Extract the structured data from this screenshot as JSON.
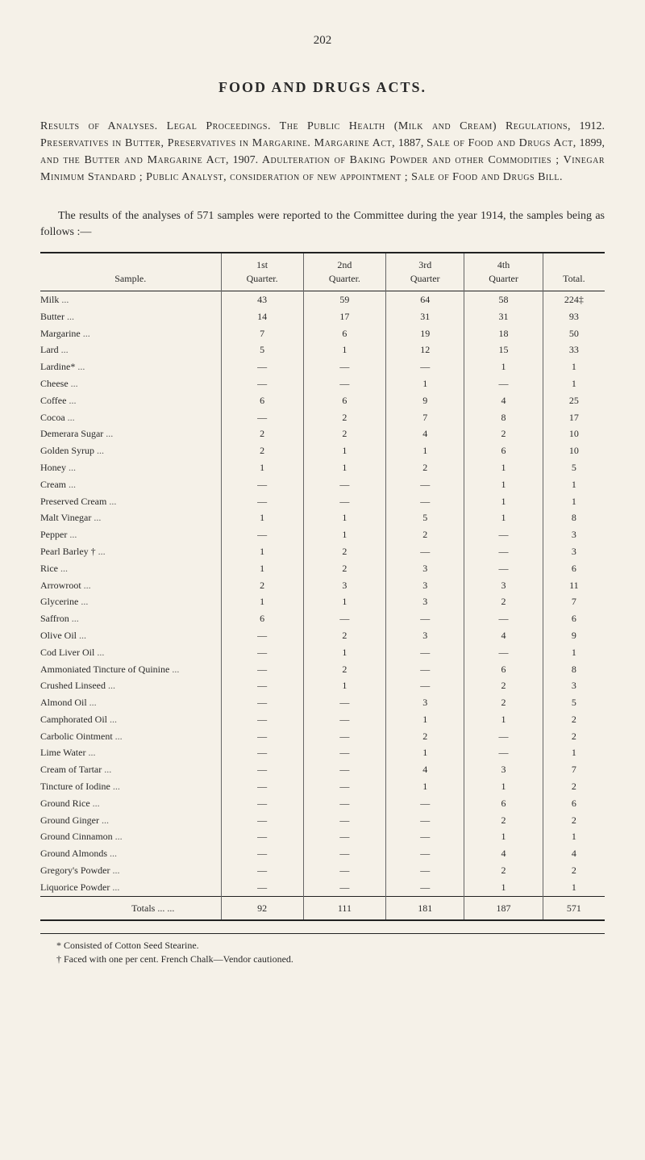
{
  "page_number": "202",
  "title": "FOOD AND DRUGS ACTS.",
  "intro": "Results of Analyses. Legal Proceedings. The Public Health (Milk and Cream) Regulations, 1912. Preservatives in Butter, Preservatives in Margarine. Margarine Act, 1887, Sale of Food and Drugs Act, 1899, and the Butter and Margarine Act, 1907. Adulteration of Baking Powder and other Commodities ; Vinegar Minimum Standard ; Public Analyst, consideration of new appointment ; Sale of Food and Drugs Bill.",
  "results_para": "The results of the analyses of 571 samples were reported to the Committee during the year 1914, the samples being as follows :—",
  "headers": {
    "sample": "Sample.",
    "q1": "1st\nQuarter.",
    "q2": "2nd\nQuarter.",
    "q3": "3rd\nQuarter",
    "q4": "4th\nQuarter",
    "total": "Total."
  },
  "rows": [
    {
      "label": "Milk",
      "q1": "43",
      "q2": "59",
      "q3": "64",
      "q4": "58",
      "total": "224‡"
    },
    {
      "label": "Butter",
      "q1": "14",
      "q2": "17",
      "q3": "31",
      "q4": "31",
      "total": "93"
    },
    {
      "label": "Margarine",
      "q1": "7",
      "q2": "6",
      "q3": "19",
      "q4": "18",
      "total": "50"
    },
    {
      "label": "Lard",
      "q1": "5",
      "q2": "1",
      "q3": "12",
      "q4": "15",
      "total": "33"
    },
    {
      "label": "Lardine*",
      "q1": "—",
      "q2": "—",
      "q3": "—",
      "q4": "1",
      "total": "1"
    },
    {
      "label": "Cheese",
      "q1": "—",
      "q2": "—",
      "q3": "1",
      "q4": "—",
      "total": "1"
    },
    {
      "label": "Coffee",
      "q1": "6",
      "q2": "6",
      "q3": "9",
      "q4": "4",
      "total": "25"
    },
    {
      "label": "Cocoa",
      "q1": "—",
      "q2": "2",
      "q3": "7",
      "q4": "8",
      "total": "17"
    },
    {
      "label": "Demerara Sugar",
      "q1": "2",
      "q2": "2",
      "q3": "4",
      "q4": "2",
      "total": "10"
    },
    {
      "label": "Golden Syrup",
      "q1": "2",
      "q2": "1",
      "q3": "1",
      "q4": "6",
      "total": "10"
    },
    {
      "label": "Honey",
      "q1": "1",
      "q2": "1",
      "q3": "2",
      "q4": "1",
      "total": "5"
    },
    {
      "label": "Cream",
      "q1": "—",
      "q2": "—",
      "q3": "—",
      "q4": "1",
      "total": "1"
    },
    {
      "label": "Preserved Cream",
      "q1": "—",
      "q2": "—",
      "q3": "—",
      "q4": "1",
      "total": "1"
    },
    {
      "label": "Malt Vinegar",
      "q1": "1",
      "q2": "1",
      "q3": "5",
      "q4": "1",
      "total": "8"
    },
    {
      "label": "Pepper",
      "q1": "—",
      "q2": "1",
      "q3": "2",
      "q4": "—",
      "total": "3"
    },
    {
      "label": "Pearl Barley †",
      "q1": "1",
      "q2": "2",
      "q3": "—",
      "q4": "—",
      "total": "3"
    },
    {
      "label": "Rice",
      "q1": "1",
      "q2": "2",
      "q3": "3",
      "q4": "—",
      "total": "6"
    },
    {
      "label": "Arrowroot",
      "q1": "2",
      "q2": "3",
      "q3": "3",
      "q4": "3",
      "total": "11"
    },
    {
      "label": "Glycerine",
      "q1": "1",
      "q2": "1",
      "q3": "3",
      "q4": "2",
      "total": "7"
    },
    {
      "label": "Saffron",
      "q1": "6",
      "q2": "—",
      "q3": "—",
      "q4": "—",
      "total": "6"
    },
    {
      "label": "Olive Oil",
      "q1": "—",
      "q2": "2",
      "q3": "3",
      "q4": "4",
      "total": "9"
    },
    {
      "label": "Cod Liver Oil",
      "q1": "—",
      "q2": "1",
      "q3": "—",
      "q4": "—",
      "total": "1"
    },
    {
      "label": "Ammoniated Tincture of Quinine",
      "q1": "—",
      "q2": "2",
      "q3": "—",
      "q4": "6",
      "total": "8"
    },
    {
      "label": "Crushed Linseed",
      "q1": "—",
      "q2": "1",
      "q3": "—",
      "q4": "2",
      "total": "3"
    },
    {
      "label": "Almond Oil",
      "q1": "—",
      "q2": "—",
      "q3": "3",
      "q4": "2",
      "total": "5"
    },
    {
      "label": "Camphorated Oil",
      "q1": "—",
      "q2": "—",
      "q3": "1",
      "q4": "1",
      "total": "2"
    },
    {
      "label": "Carbolic Ointment",
      "q1": "—",
      "q2": "—",
      "q3": "2",
      "q4": "—",
      "total": "2"
    },
    {
      "label": "Lime Water",
      "q1": "—",
      "q2": "—",
      "q3": "1",
      "q4": "—",
      "total": "1"
    },
    {
      "label": "Cream of Tartar",
      "q1": "—",
      "q2": "—",
      "q3": "4",
      "q4": "3",
      "total": "7"
    },
    {
      "label": "Tincture of Iodine",
      "q1": "—",
      "q2": "—",
      "q3": "1",
      "q4": "1",
      "total": "2"
    },
    {
      "label": "Ground Rice",
      "q1": "—",
      "q2": "—",
      "q3": "—",
      "q4": "6",
      "total": "6"
    },
    {
      "label": "Ground Ginger",
      "q1": "—",
      "q2": "—",
      "q3": "—",
      "q4": "2",
      "total": "2"
    },
    {
      "label": "Ground Cinnamon",
      "q1": "—",
      "q2": "—",
      "q3": "—",
      "q4": "1",
      "total": "1"
    },
    {
      "label": "Ground Almonds",
      "q1": "—",
      "q2": "—",
      "q3": "—",
      "q4": "4",
      "total": "4"
    },
    {
      "label": "Gregory's Powder",
      "q1": "—",
      "q2": "—",
      "q3": "—",
      "q4": "2",
      "total": "2"
    },
    {
      "label": "Liquorice Powder",
      "q1": "—",
      "q2": "—",
      "q3": "—",
      "q4": "1",
      "total": "1"
    }
  ],
  "totals": {
    "label": "Totals",
    "dots": "... ...",
    "q1": "92",
    "q2": "111",
    "q3": "181",
    "q4": "187",
    "total": "571"
  },
  "footnotes": [
    "* Consisted of Cotton Seed Stearine.",
    "† Faced with one per cent. French Chalk—Vendor cautioned."
  ]
}
